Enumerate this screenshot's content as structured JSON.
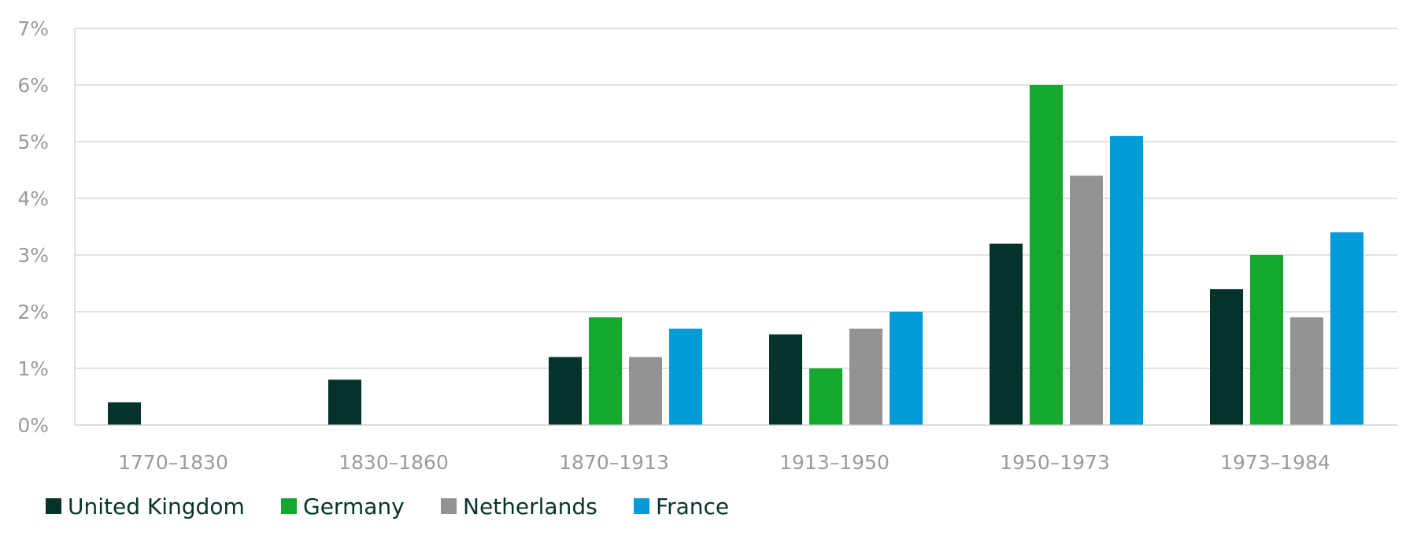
{
  "chart_data": {
    "type": "bar",
    "title": "",
    "xlabel": "",
    "ylabel": "",
    "ylim": [
      0,
      7
    ],
    "y_ticks": [
      "0%",
      "1%",
      "2%",
      "3%",
      "4%",
      "5%",
      "6%",
      "7%"
    ],
    "grid": true,
    "legend_position": "bottom-left",
    "categories": [
      "1770–1830",
      "1830–1860",
      "1870–1913",
      "1913–1950",
      "1950–1973",
      "1973–1984"
    ],
    "series": [
      {
        "name": "United Kingdom",
        "color": "#04332b",
        "values": [
          0.4,
          0.8,
          1.2,
          1.6,
          3.2,
          2.4
        ]
      },
      {
        "name": "Germany",
        "color": "#14a92d",
        "values": [
          null,
          null,
          1.9,
          1.0,
          6.0,
          3.0
        ]
      },
      {
        "name": "Netherlands",
        "color": "#939393",
        "values": [
          null,
          null,
          1.2,
          1.7,
          4.4,
          1.9
        ]
      },
      {
        "name": "France",
        "color": "#009bd8",
        "values": [
          null,
          null,
          1.7,
          2.0,
          5.1,
          3.4
        ]
      }
    ]
  }
}
